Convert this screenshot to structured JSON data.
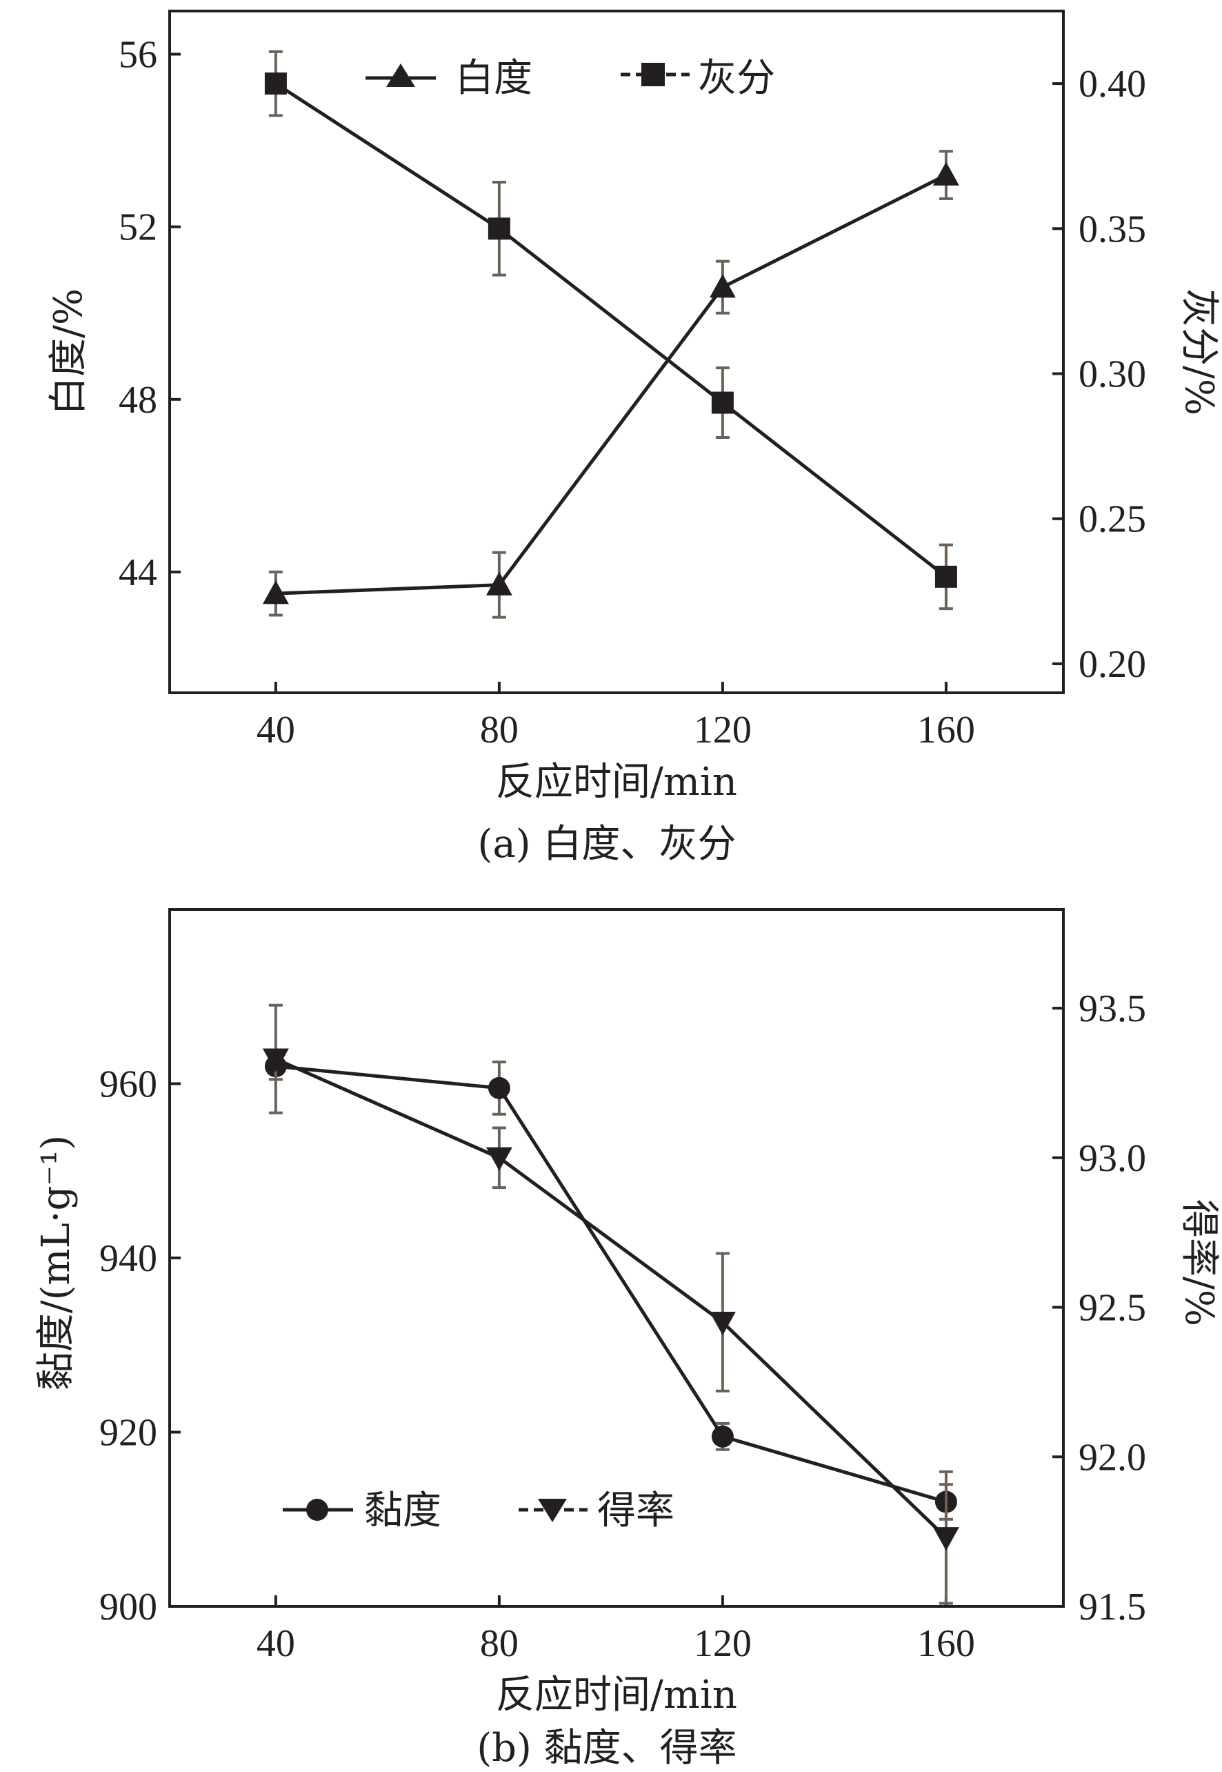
{
  "chart_data": [
    {
      "panel": "a",
      "type": "line",
      "caption": "(a) 白度、灰分",
      "xlabel": "反应时间/min",
      "ylabel": "白度/%",
      "y2label": "灰分/%",
      "x": [
        40,
        80,
        120,
        160
      ],
      "xticks": [
        "40",
        "80",
        "120",
        "160"
      ],
      "xlim": [
        21,
        181
      ],
      "ylim": [
        41.2,
        57
      ],
      "yticks": [
        "44",
        "48",
        "52",
        "56"
      ],
      "y2lim": [
        0.19,
        0.425
      ],
      "y2ticks": [
        "0.20",
        "0.25",
        "0.30",
        "0.35",
        "0.40"
      ],
      "legend_position": "top-center",
      "series": [
        {
          "name": "白度",
          "axis": "left",
          "marker": "triangle-up",
          "values": [
            43.5,
            43.7,
            50.6,
            53.2
          ],
          "errors": [
            0.5,
            0.75,
            0.6,
            0.55
          ]
        },
        {
          "name": "灰分",
          "axis": "right",
          "marker": "square",
          "values": [
            0.4,
            0.35,
            0.29,
            0.23
          ],
          "errors": [
            0.011,
            0.016,
            0.012,
            0.011
          ]
        }
      ]
    },
    {
      "panel": "b",
      "type": "line",
      "caption": "(b) 黏度、得率",
      "xlabel": "反应时间/min",
      "ylabel": "黏度/(mL·g⁻¹)",
      "y2label": "得率/%",
      "x": [
        40,
        80,
        120,
        160
      ],
      "xticks": [
        "40",
        "80",
        "120",
        "160"
      ],
      "xlim": [
        21,
        181
      ],
      "ylim": [
        900,
        980
      ],
      "yticks": [
        "900",
        "920",
        "940",
        "960"
      ],
      "y2lim": [
        91.5,
        93.83
      ],
      "y2ticks": [
        "91.5",
        "92.0",
        "92.5",
        "93.0",
        "93.5"
      ],
      "legend_position": "bottom-left",
      "series": [
        {
          "name": "黏度",
          "axis": "left",
          "marker": "circle",
          "values": [
            962,
            959.5,
            919.5,
            912
          ],
          "errors": [
            1.5,
            3,
            1.5,
            2
          ]
        },
        {
          "name": "得率",
          "axis": "right",
          "marker": "triangle-down",
          "values": [
            93.33,
            93.0,
            92.45,
            91.73
          ],
          "errors": [
            0.18,
            0.1,
            0.23,
            0.22
          ]
        }
      ]
    }
  ]
}
